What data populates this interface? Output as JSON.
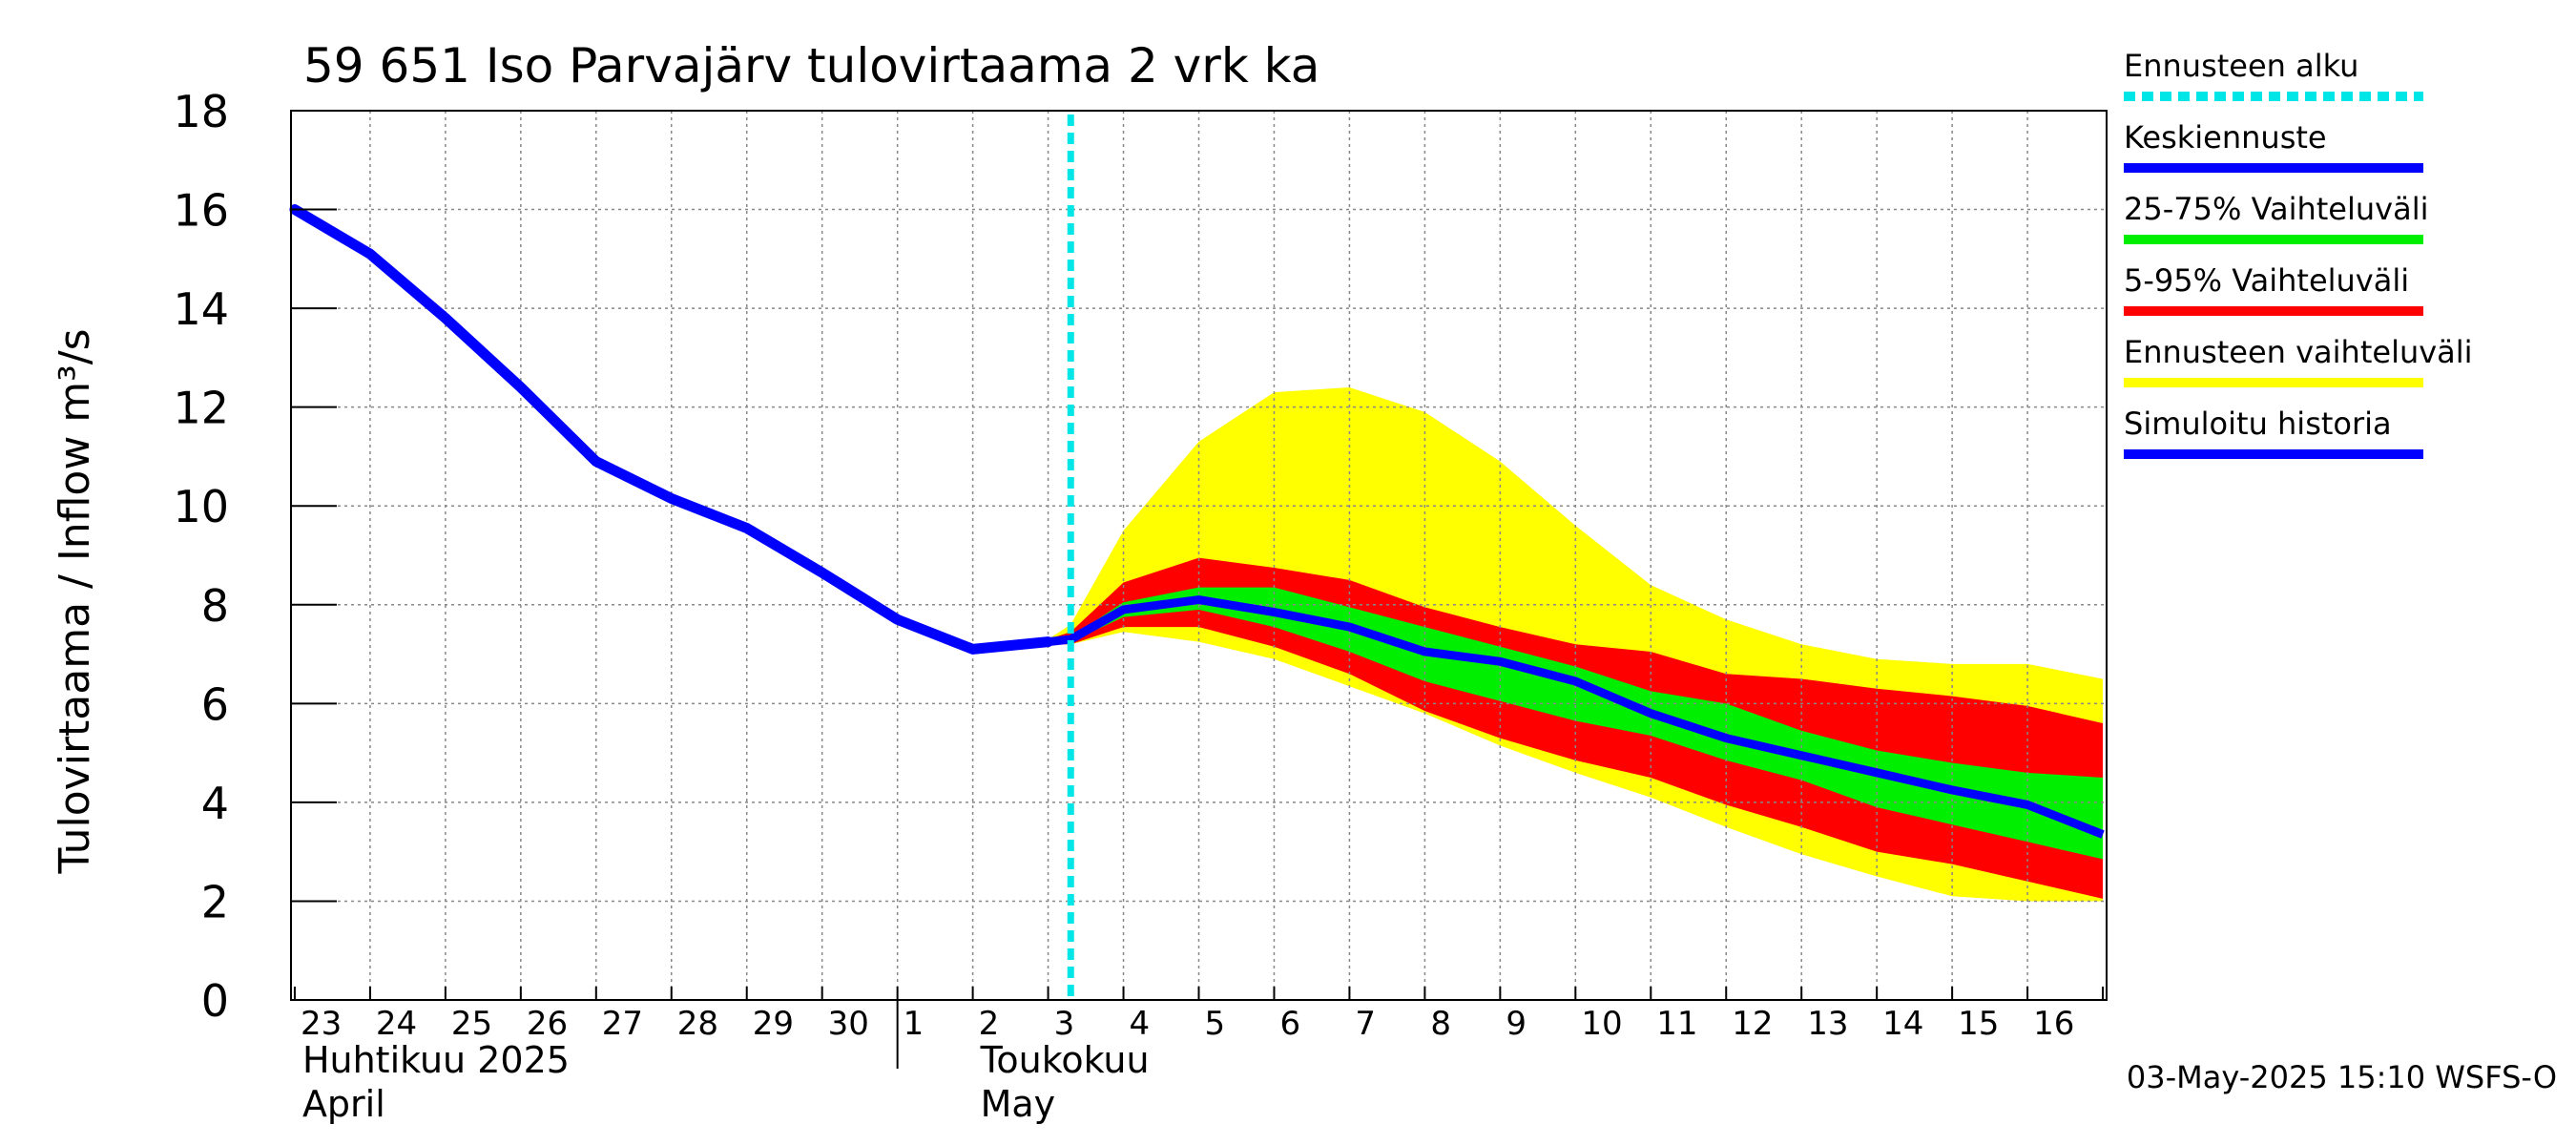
{
  "chart_data": {
    "type": "area",
    "title": "59 651 Iso Parvajärv tulovirtaama 2 vrk ka",
    "ylabel": "Tulovirtaama / Inflow    m³/s",
    "ylim": [
      0,
      18
    ],
    "yticks": [
      "0",
      "2",
      "4",
      "6",
      "8",
      "10",
      "12",
      "14",
      "16",
      "18"
    ],
    "xlim": [
      -0.05,
      24.05
    ],
    "day_labels": [
      "23",
      "24",
      "25",
      "26",
      "27",
      "28",
      "29",
      "30",
      "1",
      "2",
      "3",
      "4",
      "5",
      "6",
      "7",
      "8",
      "9",
      "10",
      "11",
      "12",
      "13",
      "14",
      "15",
      "16"
    ],
    "month_labels": [
      {
        "fi": "Huhtikuu  2025",
        "en": "April",
        "day_index": 0
      },
      {
        "fi": "Toukokuu",
        "en": "May",
        "day_index": 9
      }
    ],
    "forecast_start": 10.3,
    "footer": "03-May-2025 15:10 WSFS-O",
    "history": {
      "x": [
        0,
        1,
        2,
        3,
        4,
        5,
        6,
        7,
        8,
        9,
        10
      ],
      "y": [
        16.0,
        15.1,
        13.8,
        12.4,
        10.9,
        10.15,
        9.55,
        8.65,
        7.7,
        7.1,
        7.25
      ]
    },
    "forecast_x": [
      10,
      10.3,
      11,
      12,
      13,
      14,
      15,
      16,
      17,
      18,
      19,
      20,
      21,
      22,
      23,
      24
    ],
    "bands": {
      "yellow_upper": [
        7.3,
        7.6,
        9.5,
        11.3,
        12.3,
        12.4,
        11.9,
        10.9,
        9.6,
        8.4,
        7.7,
        7.2,
        6.9,
        6.8,
        6.8,
        6.5
      ],
      "yellow_lower": [
        7.2,
        7.2,
        7.45,
        7.25,
        6.9,
        6.35,
        5.8,
        5.15,
        4.6,
        4.1,
        3.5,
        2.95,
        2.5,
        2.1,
        2.0,
        2.0
      ],
      "red_upper": [
        7.3,
        7.45,
        8.45,
        8.95,
        8.75,
        8.5,
        7.95,
        7.55,
        7.2,
        7.05,
        6.6,
        6.5,
        6.3,
        6.15,
        5.95,
        5.6
      ],
      "red_lower": [
        7.2,
        7.2,
        7.55,
        7.55,
        7.15,
        6.6,
        5.85,
        5.3,
        4.85,
        4.5,
        3.95,
        3.5,
        3.0,
        2.75,
        2.4,
        2.05
      ],
      "green_upper": [
        7.25,
        7.35,
        8.05,
        8.35,
        8.35,
        7.95,
        7.55,
        7.15,
        6.75,
        6.25,
        6.0,
        5.45,
        5.05,
        4.8,
        4.6,
        4.5
      ],
      "green_lower": [
        7.25,
        7.25,
        7.75,
        7.9,
        7.55,
        7.05,
        6.45,
        6.05,
        5.65,
        5.35,
        4.85,
        4.45,
        3.9,
        3.55,
        3.2,
        2.85
      ],
      "median": [
        7.25,
        7.3,
        7.9,
        8.1,
        7.85,
        7.55,
        7.05,
        6.85,
        6.45,
        5.8,
        5.3,
        4.95,
        4.6,
        4.25,
        3.95,
        3.35
      ]
    },
    "legend": {
      "position": "right",
      "items": [
        {
          "label": "Ennusteen alku",
          "color": "#00e5e5",
          "style": "dotted"
        },
        {
          "label": "Keskiennuste",
          "color": "#0000ff",
          "style": "solid"
        },
        {
          "label": "25-75% Vaihteluväli",
          "color": "#00ee00",
          "style": "solid"
        },
        {
          "label": "5-95% Vaihteluväli",
          "color": "#ff0000",
          "style": "solid"
        },
        {
          "label": "Ennusteen vaihteluväli",
          "color": "#ffff00",
          "style": "solid"
        },
        {
          "label": "Simuloitu historia",
          "color": "#0000ff",
          "style": "solid"
        }
      ]
    },
    "colors": {
      "history": "#0000ff",
      "median": "#0000ff",
      "green": "#00ee00",
      "red": "#ff0000",
      "yellow": "#ffff00",
      "forecast_line": "#00e5e5",
      "grid": "#888888"
    }
  }
}
